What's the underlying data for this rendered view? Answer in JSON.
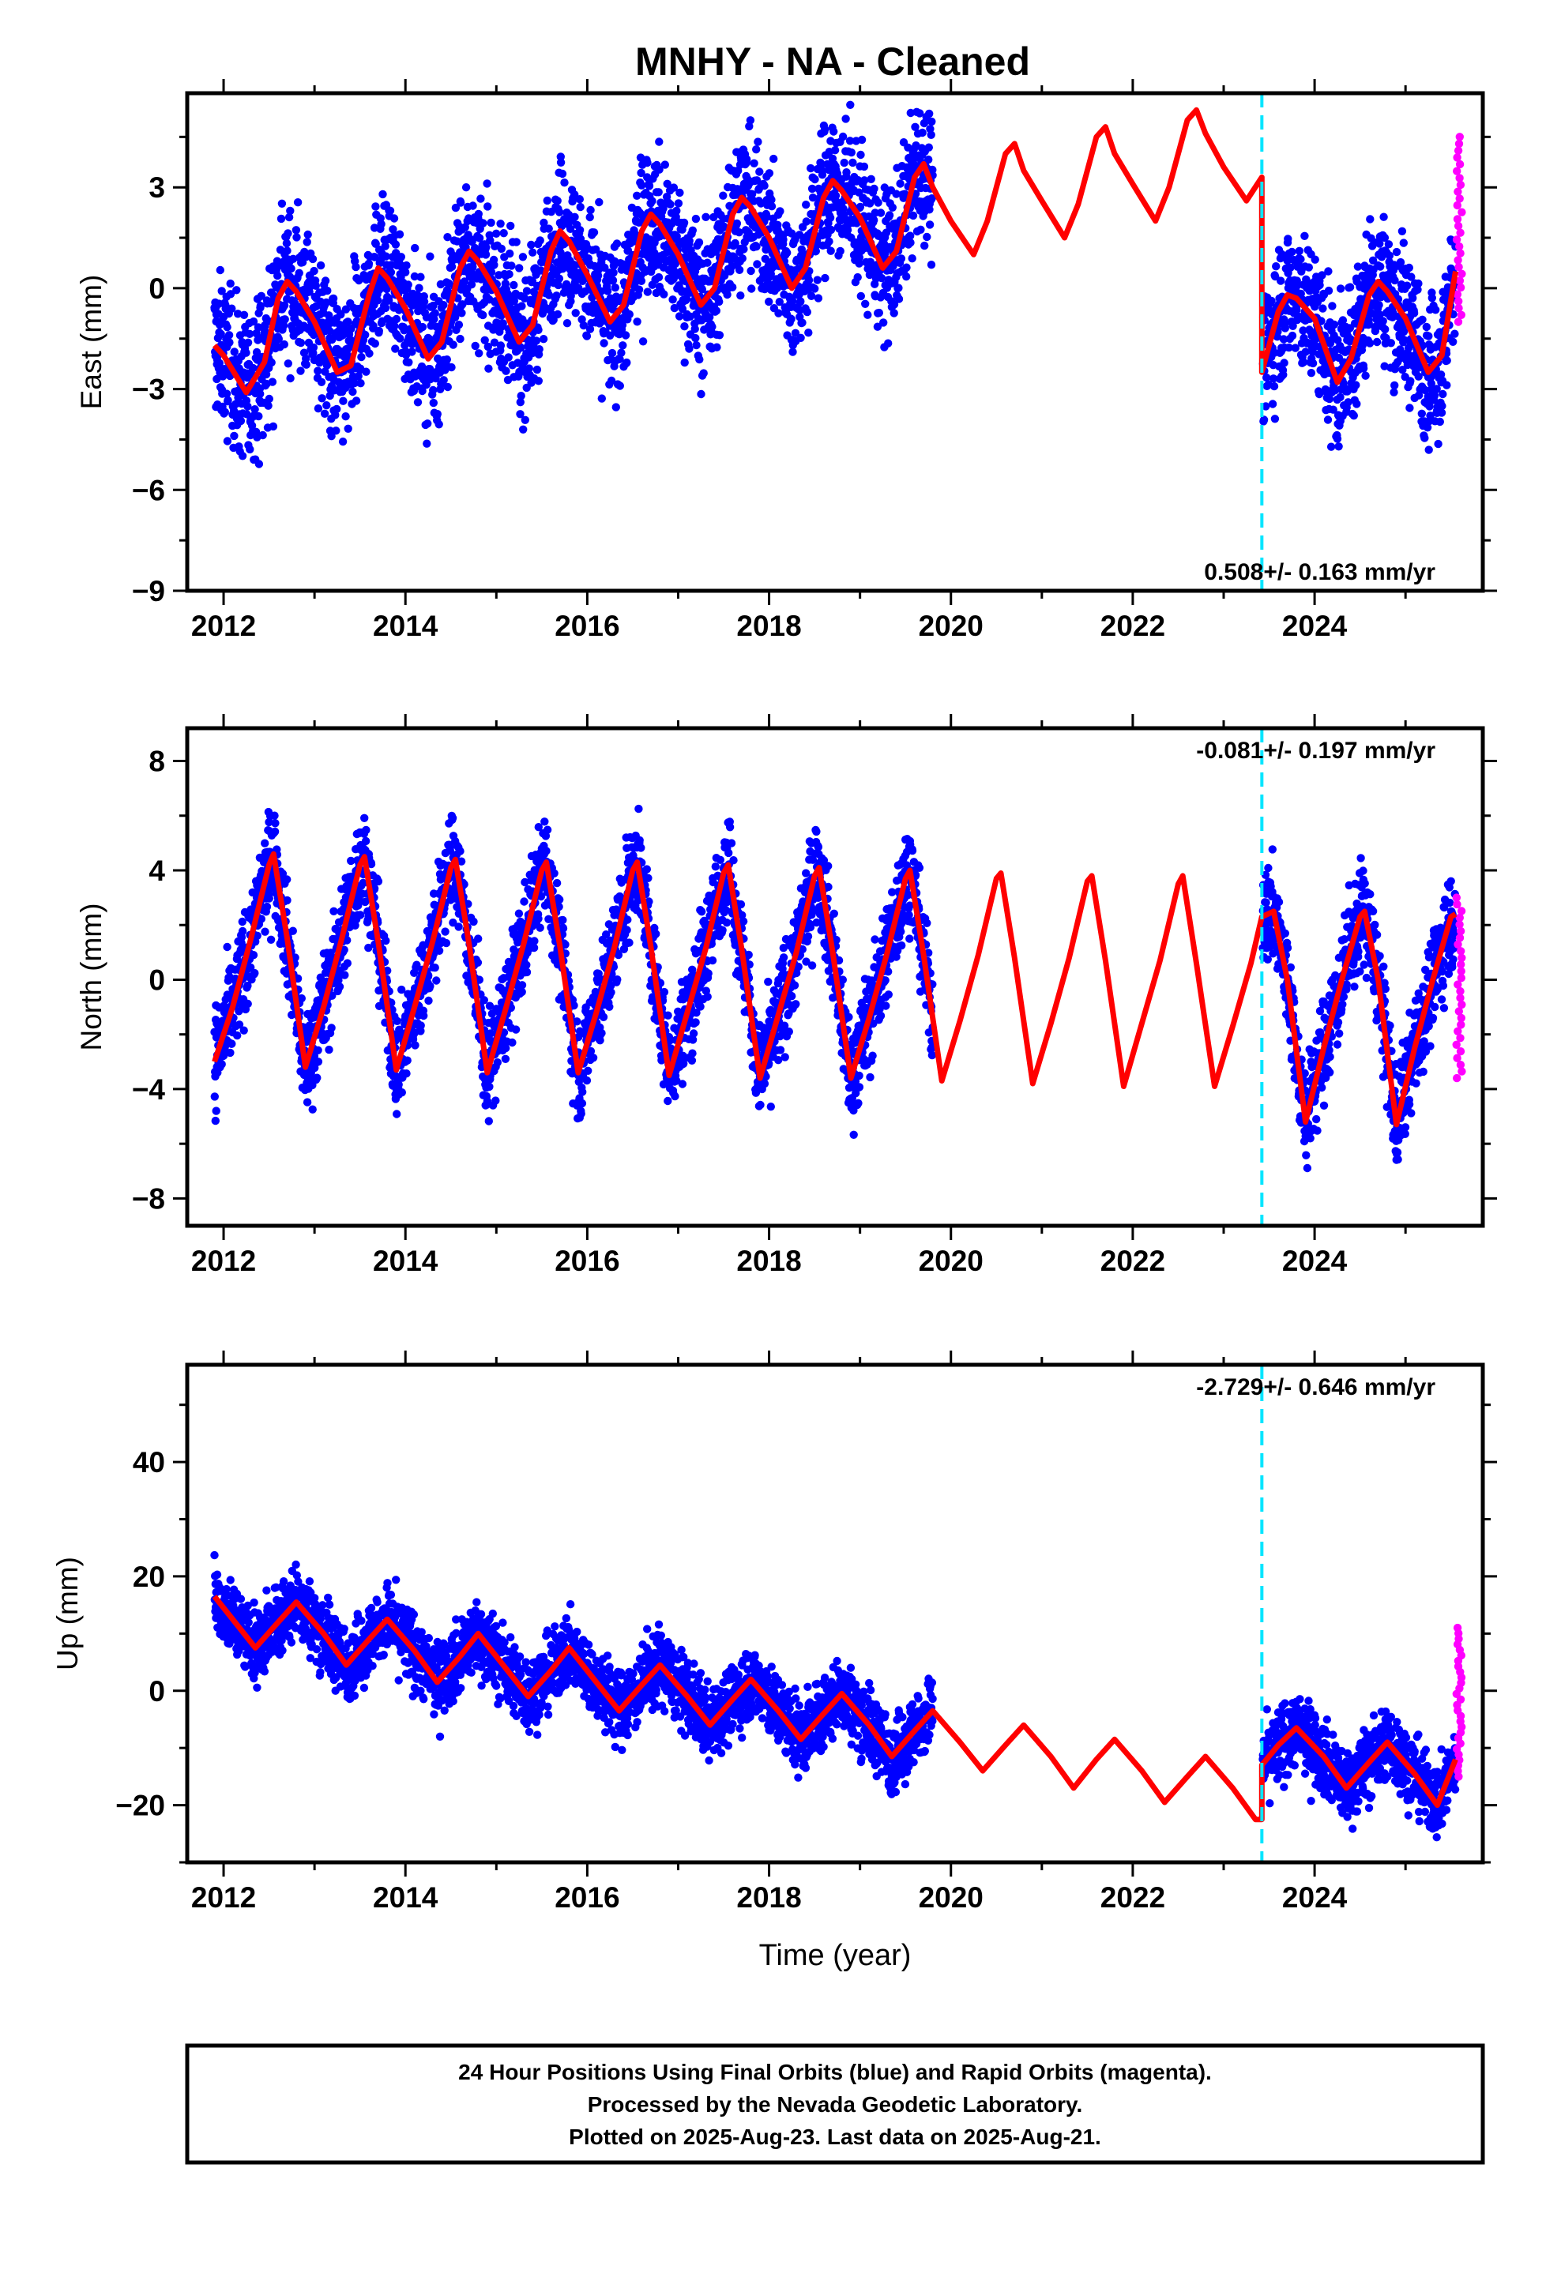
{
  "title": "MNHY  - NA - Cleaned",
  "footer": {
    "lines": [
      "24 Hour Positions Using Final Orbits (blue) and Rapid Orbits (magenta).",
      "Processed by the Nevada Geodetic Laboratory.",
      "Plotted on 2025-Aug-23. Last data on 2025-Aug-21."
    ]
  },
  "colors": {
    "final_orbits": "#0000ff",
    "rapid_orbits": "#ff00ff",
    "model": "#ff0000",
    "equipment_change": "#00e5ff"
  },
  "chart_data": [
    {
      "type": "scatter",
      "panel": "east",
      "ylabel": "East (mm)",
      "xlabel": "",
      "xlim": [
        2011.6,
        2025.85
      ],
      "ylim": [
        -9,
        5.8
      ],
      "xticks": [
        2012,
        2014,
        2016,
        2018,
        2020,
        2022,
        2024
      ],
      "yticks": [
        -9,
        -6,
        -3,
        0,
        3
      ],
      "rate_label": "0.508+/- 0.163 mm/yr",
      "step_epoch": 2023.42,
      "series": [
        {
          "role": "final_orbits_daily",
          "spans": [
            [
              2011.9,
              2019.8
            ],
            [
              2023.43,
              2025.55
            ]
          ],
          "scatter_mm": 1.5
        },
        {
          "role": "rapid_orbits_daily",
          "x_range": [
            2025.56,
            2025.62
          ],
          "y_range": [
            -1.0,
            4.5
          ]
        },
        {
          "role": "model_fit",
          "x": [
            2011.9,
            2012.0,
            2012.25,
            2012.45,
            2012.6,
            2012.7,
            2012.8,
            2013.0,
            2013.25,
            2013.4,
            2013.6,
            2013.7,
            2013.8,
            2014.0,
            2014.25,
            2014.4,
            2014.6,
            2014.7,
            2014.8,
            2015.0,
            2015.25,
            2015.4,
            2015.6,
            2015.7,
            2015.8,
            2016.0,
            2016.25,
            2016.4,
            2016.6,
            2016.7,
            2016.8,
            2017.0,
            2017.25,
            2017.4,
            2017.6,
            2017.7,
            2017.8,
            2018.0,
            2018.25,
            2018.4,
            2018.6,
            2018.7,
            2018.8,
            2019.0,
            2019.25,
            2019.4,
            2019.6,
            2019.7,
            2019.8,
            2020.0,
            2020.25,
            2020.4,
            2020.6,
            2020.7,
            2020.8,
            2021.0,
            2021.25,
            2021.4,
            2021.6,
            2021.7,
            2021.8,
            2022.0,
            2022.25,
            2022.4,
            2022.6,
            2022.7,
            2022.8,
            2023.0,
            2023.25,
            2023.42,
            2023.42,
            2023.6,
            2023.7,
            2023.8,
            2024.0,
            2024.25,
            2024.4,
            2024.6,
            2024.7,
            2024.8,
            2025.0,
            2025.25,
            2025.4,
            2025.55
          ],
          "y": [
            -1.7,
            -2.0,
            -3.1,
            -2.2,
            -0.3,
            0.2,
            -0.1,
            -1.0,
            -2.5,
            -2.3,
            -0.2,
            0.6,
            0.3,
            -0.6,
            -2.1,
            -1.6,
            0.6,
            1.1,
            0.8,
            -0.1,
            -1.6,
            -1.1,
            1.1,
            1.7,
            1.4,
            0.4,
            -1.0,
            -0.5,
            1.7,
            2.2,
            1.9,
            1.0,
            -0.5,
            0.0,
            2.2,
            2.7,
            2.4,
            1.5,
            0.0,
            0.6,
            2.7,
            3.2,
            2.9,
            2.1,
            0.6,
            1.1,
            3.3,
            3.7,
            3.0,
            2.0,
            1.0,
            2.0,
            4.0,
            4.3,
            3.5,
            2.6,
            1.5,
            2.5,
            4.5,
            4.8,
            4.0,
            3.1,
            2.0,
            3.0,
            5.0,
            5.3,
            4.6,
            3.6,
            2.6,
            3.3,
            -2.5,
            -0.7,
            -0.2,
            -0.3,
            -0.9,
            -2.8,
            -2.1,
            -0.2,
            0.2,
            -0.1,
            -0.9,
            -2.5,
            -2.0,
            0.5
          ]
        }
      ]
    },
    {
      "type": "scatter",
      "panel": "north",
      "ylabel": "North (mm)",
      "xlabel": "",
      "xlim": [
        2011.6,
        2025.85
      ],
      "ylim": [
        -9,
        9.2
      ],
      "xticks": [
        2012,
        2014,
        2016,
        2018,
        2020,
        2022,
        2024
      ],
      "yticks": [
        -8,
        -4,
        0,
        4,
        8
      ],
      "rate_label": "-0.081+/- 0.197 mm/yr",
      "step_epoch": 2023.42,
      "series": [
        {
          "role": "final_orbits_daily",
          "spans": [
            [
              2011.9,
              2019.8
            ],
            [
              2023.43,
              2025.55
            ]
          ],
          "scatter_mm": 1.3
        },
        {
          "role": "rapid_orbits_daily",
          "x_range": [
            2025.56,
            2025.62
          ],
          "y_range": [
            -3.6,
            3.0
          ]
        },
        {
          "role": "model_fit",
          "x": [
            2011.9,
            2012.1,
            2012.3,
            2012.5,
            2012.55,
            2012.7,
            2012.9,
            2013.1,
            2013.3,
            2013.5,
            2013.55,
            2013.7,
            2013.9,
            2014.1,
            2014.3,
            2014.5,
            2014.55,
            2014.7,
            2014.9,
            2015.1,
            2015.3,
            2015.5,
            2015.55,
            2015.7,
            2015.9,
            2016.1,
            2016.3,
            2016.5,
            2016.55,
            2016.7,
            2016.9,
            2017.1,
            2017.3,
            2017.5,
            2017.55,
            2017.7,
            2017.9,
            2018.1,
            2018.3,
            2018.5,
            2018.55,
            2018.7,
            2018.9,
            2019.1,
            2019.3,
            2019.5,
            2019.55,
            2019.7,
            2019.9,
            2020.1,
            2020.3,
            2020.5,
            2020.55,
            2020.7,
            2020.9,
            2021.1,
            2021.3,
            2021.5,
            2021.55,
            2021.7,
            2021.9,
            2022.1,
            2022.3,
            2022.5,
            2022.55,
            2022.7,
            2022.9,
            2023.1,
            2023.3,
            2023.42,
            2023.42,
            2023.55,
            2023.7,
            2023.9,
            2024.1,
            2024.3,
            2024.5,
            2024.55,
            2024.7,
            2024.9,
            2025.1,
            2025.3,
            2025.5,
            2025.55
          ],
          "y": [
            -3.0,
            -1.0,
            1.5,
            4.2,
            4.6,
            1.5,
            -3.2,
            -1.0,
            1.5,
            4.2,
            4.5,
            1.4,
            -3.3,
            -1.0,
            1.4,
            4.1,
            4.4,
            1.3,
            -3.4,
            -1.1,
            1.3,
            4.0,
            4.3,
            1.2,
            -3.4,
            -1.2,
            1.2,
            4.0,
            4.3,
            1.2,
            -3.5,
            -1.2,
            1.1,
            3.9,
            4.2,
            1.1,
            -3.6,
            -1.3,
            1.0,
            3.8,
            4.1,
            1.0,
            -3.6,
            -1.4,
            1.0,
            3.7,
            4.0,
            0.9,
            -3.7,
            -1.5,
            0.9,
            3.7,
            3.9,
            0.8,
            -3.8,
            -1.6,
            0.8,
            3.6,
            3.8,
            0.7,
            -3.9,
            -1.6,
            0.7,
            3.5,
            3.8,
            0.6,
            -3.9,
            -1.7,
            0.6,
            2.3,
            2.3,
            2.5,
            0.0,
            -5.2,
            -2.5,
            0.0,
            2.3,
            2.5,
            0.0,
            -5.3,
            -2.5,
            0.0,
            2.3,
            2.4
          ]
        }
      ]
    },
    {
      "type": "scatter",
      "panel": "up",
      "ylabel": "Up (mm)",
      "xlabel": "Time (year)",
      "xlim": [
        2011.6,
        2025.85
      ],
      "ylim": [
        -30,
        57
      ],
      "xticks": [
        2012,
        2014,
        2016,
        2018,
        2020,
        2022,
        2024
      ],
      "yticks": [
        -20,
        0,
        20,
        40
      ],
      "rate_label": "-2.729+/- 0.646 mm/yr",
      "step_epoch": 2023.42,
      "series": [
        {
          "role": "final_orbits_daily",
          "spans": [
            [
              2011.9,
              2019.8
            ],
            [
              2023.43,
              2025.55
            ]
          ],
          "scatter_mm": 4.5
        },
        {
          "role": "rapid_orbits_daily",
          "x_range": [
            2025.56,
            2025.62
          ],
          "y_range": [
            -15,
            11
          ]
        },
        {
          "role": "model_fit",
          "x": [
            2011.9,
            2012.1,
            2012.35,
            2012.6,
            2012.8,
            2013.1,
            2013.35,
            2013.6,
            2013.8,
            2014.1,
            2014.35,
            2014.6,
            2014.8,
            2015.1,
            2015.35,
            2015.6,
            2015.8,
            2016.1,
            2016.35,
            2016.6,
            2016.8,
            2017.1,
            2017.35,
            2017.6,
            2017.8,
            2018.1,
            2018.35,
            2018.6,
            2018.8,
            2019.1,
            2019.35,
            2019.6,
            2019.8,
            2020.1,
            2020.35,
            2020.6,
            2020.8,
            2021.1,
            2021.35,
            2021.6,
            2021.8,
            2022.1,
            2022.35,
            2022.6,
            2022.8,
            2023.1,
            2023.35,
            2023.42,
            2023.42,
            2023.6,
            2023.8,
            2024.1,
            2024.35,
            2024.6,
            2024.8,
            2025.1,
            2025.35,
            2025.55
          ],
          "y": [
            16.5,
            12.5,
            7.5,
            12.0,
            15.5,
            10.0,
            4.5,
            9.0,
            12.5,
            7.0,
            1.5,
            6.0,
            10.0,
            4.0,
            -1.0,
            3.5,
            7.5,
            1.5,
            -3.5,
            1.0,
            4.5,
            -1.0,
            -6.0,
            -1.5,
            2.0,
            -3.5,
            -8.5,
            -4.0,
            -0.5,
            -6.0,
            -11.5,
            -7.0,
            -3.5,
            -9.0,
            -14.0,
            -9.5,
            -6.0,
            -11.5,
            -17.0,
            -12.0,
            -8.5,
            -14.0,
            -19.5,
            -15.0,
            -11.5,
            -17.0,
            -22.5,
            -22.5,
            -13.0,
            -9.5,
            -6.5,
            -11.5,
            -17.0,
            -12.5,
            -9.0,
            -14.5,
            -20.0,
            -12.0
          ]
        }
      ]
    }
  ]
}
